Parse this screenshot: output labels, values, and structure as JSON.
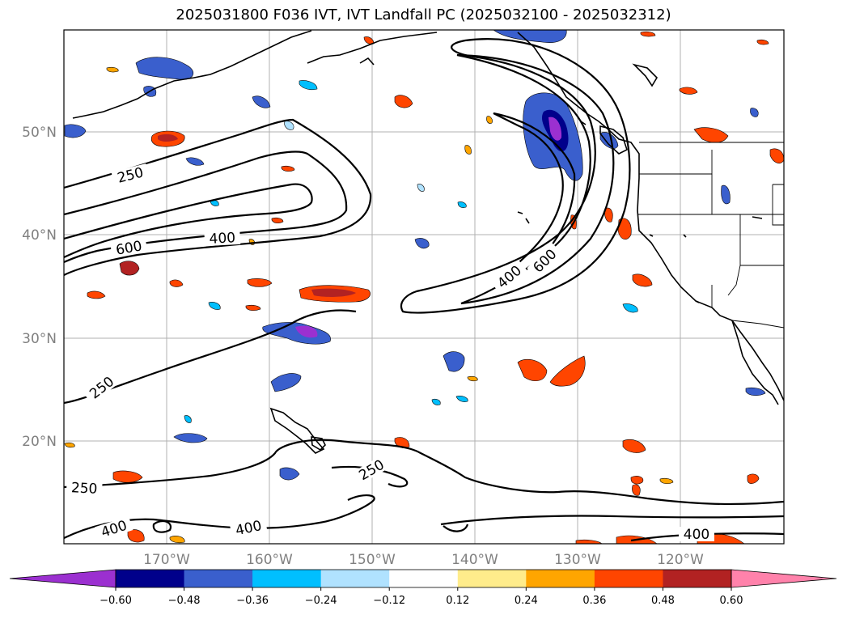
{
  "title": "2025031800 F036 IVT, IVT Landfall PC (2025032100 - 2025032312)",
  "lat_ticks": [
    "50°N",
    "40°N",
    "30°N",
    "20°N"
  ],
  "lon_ticks": [
    "170°W",
    "160°W",
    "150°W",
    "140°W",
    "130°W",
    "120°W"
  ],
  "colorbar": {
    "tick_labels": [
      "−0.60",
      "−0.48",
      "−0.36",
      "−0.24",
      "−0.12",
      "0.12",
      "0.24",
      "0.36",
      "0.48",
      "0.60"
    ],
    "colors": [
      "#9b30d0",
      "#00008b",
      "#3a5fcd",
      "#00bfff",
      "#b0e2ff",
      "#ffffff",
      "#ffec8b",
      "#ffa500",
      "#ff4500",
      "#b22222",
      "#ff82ab"
    ]
  },
  "contour_labels": [
    {
      "text": "250"
    },
    {
      "text": "600"
    },
    {
      "text": "400"
    },
    {
      "text": "400"
    },
    {
      "text": "600"
    },
    {
      "text": "250"
    },
    {
      "text": "250"
    },
    {
      "text": "250"
    },
    {
      "text": "400"
    },
    {
      "text": "400"
    },
    {
      "text": "400"
    }
  ]
}
